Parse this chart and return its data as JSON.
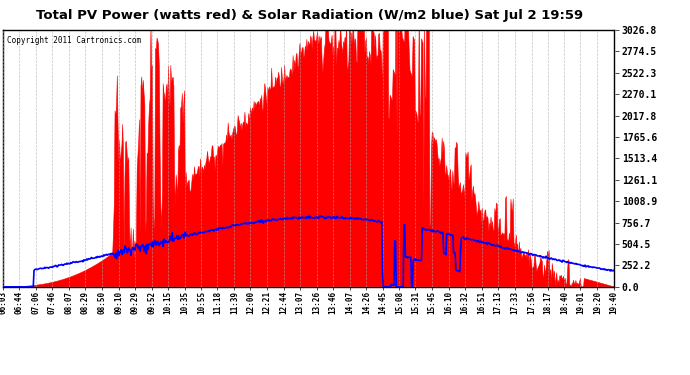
{
  "title": "Total PV Power (watts red) & Solar Radiation (W/m2 blue) Sat Jul 2 19:59",
  "copyright_text": "Copyright 2011 Cartronics.com",
  "background_color": "#ffffff",
  "plot_bg_color": "#ffffff",
  "grid_color": "#aaaaaa",
  "red_fill_color": "#ff0000",
  "blue_line_color": "#0000ff",
  "ymax": 3026.8,
  "ymin": 0.0,
  "yticks": [
    0.0,
    252.2,
    504.5,
    756.7,
    1008.9,
    1261.1,
    1513.4,
    1765.6,
    2017.8,
    2270.1,
    2522.3,
    2774.5,
    3026.8
  ],
  "xlabel_times": [
    "06:03",
    "06:44",
    "07:06",
    "07:46",
    "08:07",
    "08:29",
    "08:50",
    "09:10",
    "09:29",
    "09:52",
    "10:15",
    "10:35",
    "10:55",
    "11:18",
    "11:39",
    "12:00",
    "12:21",
    "12:44",
    "13:07",
    "13:26",
    "13:46",
    "14:07",
    "14:26",
    "14:45",
    "15:08",
    "15:31",
    "15:45",
    "16:10",
    "16:32",
    "16:51",
    "17:13",
    "17:33",
    "17:56",
    "18:17",
    "18:40",
    "19:01",
    "19:20",
    "19:40"
  ],
  "num_points": 800
}
